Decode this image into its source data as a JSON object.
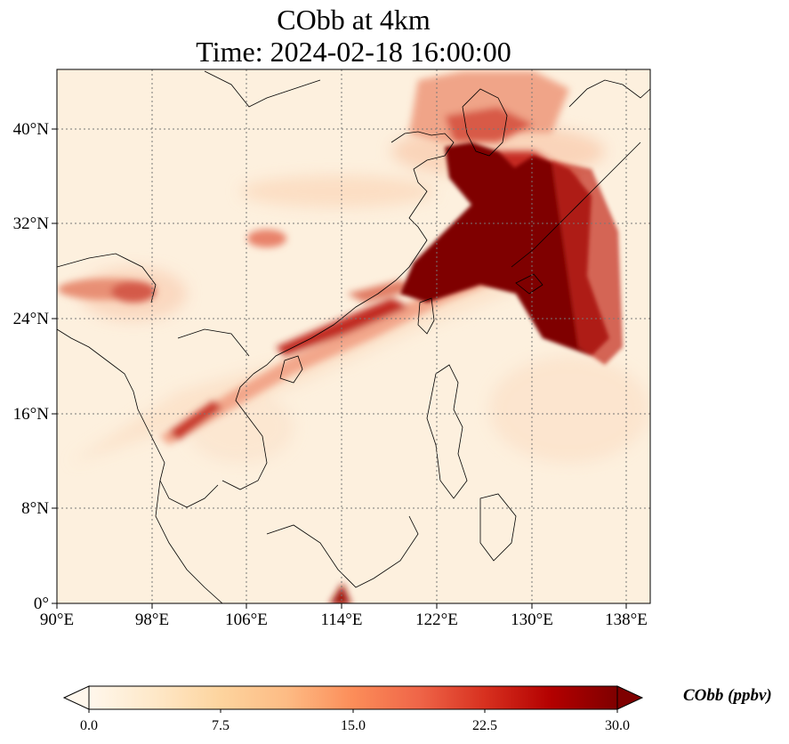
{
  "title": {
    "line1": "CObb at 4km",
    "line2": "Time: 2024-02-18 16:00:00"
  },
  "map": {
    "lon_range": [
      90,
      140
    ],
    "lat_range": [
      0,
      45
    ],
    "x_ticks": [
      {
        "lon": 90,
        "label": "90°E"
      },
      {
        "lon": 98,
        "label": "98°E"
      },
      {
        "lon": 106,
        "label": "106°E"
      },
      {
        "lon": 114,
        "label": "114°E"
      },
      {
        "lon": 122,
        "label": "122°E"
      },
      {
        "lon": 130,
        "label": "130°E"
      },
      {
        "lon": 138,
        "label": "138°E"
      }
    ],
    "y_ticks": [
      {
        "lat": 0,
        "label": "0°"
      },
      {
        "lat": 8,
        "label": "8°N"
      },
      {
        "lat": 16,
        "label": "16°N"
      },
      {
        "lat": 24,
        "label": "24°N"
      },
      {
        "lat": 32,
        "label": "32°N"
      },
      {
        "lat": 40,
        "label": "40°N"
      }
    ],
    "gridlines": true,
    "variable": "CObb",
    "units": "ppbv",
    "level": "4km"
  },
  "colorbar": {
    "title": "CObb (ppbv)",
    "min": 0.0,
    "max": 30.0,
    "extend": "both",
    "colormap": "OrRd",
    "tick_labels": [
      "0.0",
      "7.5",
      "15.0",
      "22.5",
      "30.0"
    ],
    "colors": [
      "#fff7ec",
      "#fee8c8",
      "#fdd49e",
      "#fdbb84",
      "#fc8d59",
      "#ef6548",
      "#d7301f",
      "#b30000",
      "#7f0000"
    ]
  }
}
